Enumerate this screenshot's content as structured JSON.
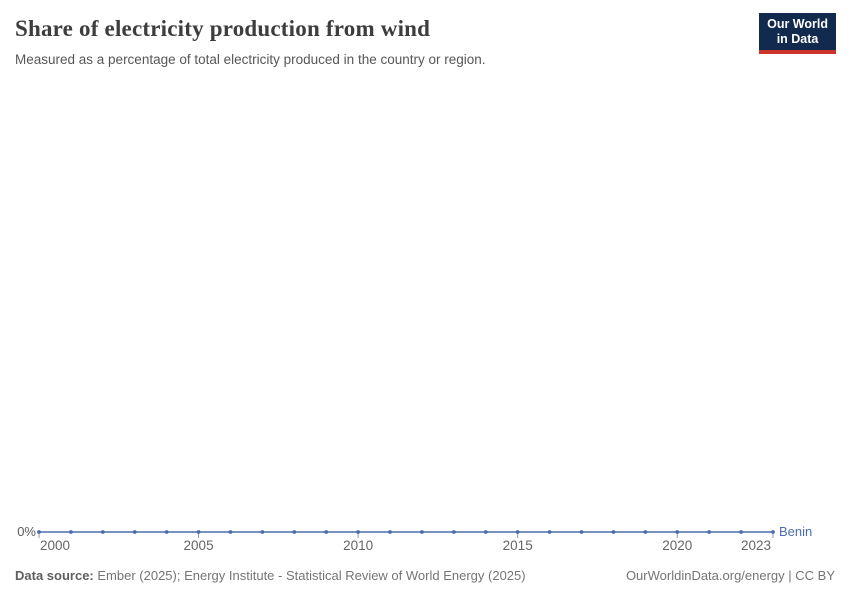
{
  "header": {
    "title": "Share of electricity production from wind",
    "subtitle": "Measured as a percentage of total electricity produced in the country or region.",
    "logo": {
      "line1": "Our World",
      "line2": "in Data"
    }
  },
  "chart_data": {
    "type": "line",
    "title": "Share of electricity production from wind",
    "subtitle": "Measured as a percentage of total electricity produced in the country or region.",
    "xlabel": "",
    "ylabel": "",
    "grid": false,
    "legend_position": "end-of-line",
    "xlim": [
      2000,
      2023
    ],
    "x": [
      2000,
      2001,
      2002,
      2003,
      2004,
      2005,
      2006,
      2007,
      2008,
      2009,
      2010,
      2011,
      2012,
      2013,
      2014,
      2015,
      2016,
      2017,
      2018,
      2019,
      2020,
      2021,
      2022,
      2023
    ],
    "series": [
      {
        "name": "Benin",
        "color": "#4c6cb0",
        "values": [
          0,
          0,
          0,
          0,
          0,
          0,
          0,
          0,
          0,
          0,
          0,
          0,
          0,
          0,
          0,
          0,
          0,
          0,
          0,
          0,
          0,
          0,
          0,
          0
        ]
      }
    ],
    "x_ticks": [
      2000,
      2005,
      2010,
      2015,
      2020,
      2023
    ],
    "y_ticks": [
      {
        "value": 0,
        "label": "0%"
      }
    ]
  },
  "footer": {
    "source_label": "Data source:",
    "source_value": "Ember (2025); Energy Institute - Statistical Review of World Energy (2025)",
    "right": "OurWorldinData.org/energy | CC BY"
  },
  "colors": {
    "series": "#4c6cb0",
    "title": "#3d3d3d",
    "subtitle": "#575757",
    "axis_label": "#5b5b5b",
    "tick_label": "#666666",
    "tick_mark": "#999999",
    "footer": "#757575",
    "logo_bg": "#122a4d",
    "logo_accent": "#cc342b",
    "background": "#ffffff"
  }
}
